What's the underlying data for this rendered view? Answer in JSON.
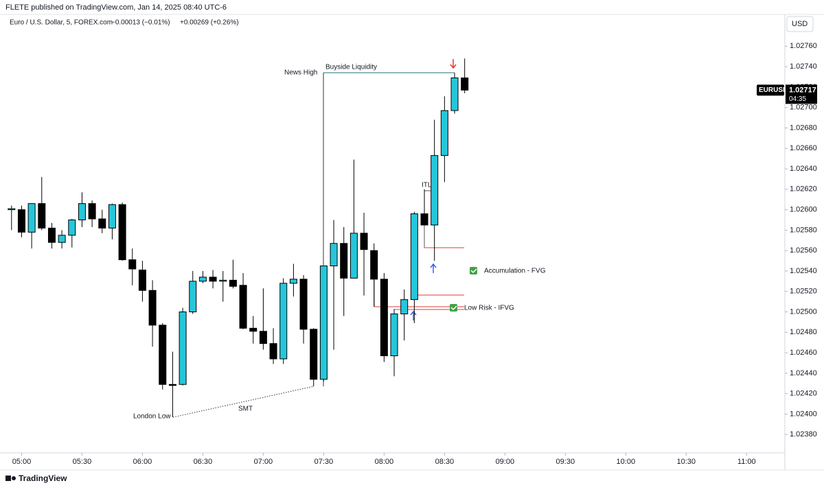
{
  "header": {
    "published": "FLETE published on TradingView.com, Jan 14, 2025 08:40 UTC-6",
    "symbol": "Euro / U.S. Dollar, 5, FOREX.com",
    "change": "−0.00013 (−0.01%)",
    "change2": "+0.00269 (+0.26%)",
    "currency": "USD",
    "brand": "TradingView"
  },
  "annotations": {
    "news_high": "News High",
    "buyside": "Buyside Liquidity",
    "london_low": "London Low",
    "smt": "SMT",
    "itl": "ITL",
    "fvg": "Accumulation - FVG",
    "ifvg": "Low Risk - IFVG"
  },
  "chart_data": {
    "type": "candlestick",
    "up_color": "#26c6da",
    "down_color": "#000000",
    "x": [
      295,
      300,
      305,
      310,
      315,
      320,
      325,
      330,
      335,
      340,
      345,
      350,
      355,
      360,
      365,
      370,
      375,
      380,
      385,
      390,
      395,
      400,
      405,
      410,
      415,
      420,
      425,
      430,
      435,
      440,
      445,
      450,
      455,
      460,
      465,
      470,
      475,
      480,
      485,
      490,
      495,
      500,
      505,
      510,
      515,
      520
    ],
    "open": [
      1.026,
      1.026,
      1.02578,
      1.02606,
      1.02582,
      1.02568,
      1.02575,
      1.0259,
      1.02606,
      1.02591,
      1.02582,
      1.02605,
      1.02551,
      1.02541,
      1.02521,
      1.02487,
      1.02429,
      1.02429,
      1.025,
      1.0253,
      1.02534,
      1.0253,
      1.02531,
      1.02526,
      1.02484,
      1.02481,
      1.02469,
      1.02454,
      1.02528,
      1.02532,
      1.02483,
      1.02434,
      1.02545,
      1.02567,
      1.02533,
      1.02577,
      1.0256,
      1.02532,
      1.02457,
      1.02498,
      1.02512,
      1.02596,
      1.02585,
      1.02653,
      1.02697,
      1.02729
    ],
    "high": [
      1.02604,
      1.02604,
      1.02606,
      1.02632,
      1.02587,
      1.0258,
      1.02591,
      1.02617,
      1.02609,
      1.026,
      1.02606,
      1.02607,
      1.02562,
      1.0255,
      1.02531,
      1.02489,
      1.02461,
      1.02504,
      1.0254,
      1.0254,
      1.02541,
      1.0254,
      1.02551,
      1.02538,
      1.02496,
      1.02523,
      1.02484,
      1.02533,
      1.02547,
      1.02536,
      1.02484,
      1.02545,
      1.0259,
      1.02583,
      1.02649,
      1.02597,
      1.02567,
      1.02538,
      1.02503,
      1.02522,
      1.02598,
      1.0262,
      1.02688,
      1.02711,
      1.02734,
      1.02748
    ],
    "low": [
      1.0258,
      1.02573,
      1.02562,
      1.0258,
      1.02562,
      1.02562,
      1.02563,
      1.02583,
      1.02583,
      1.02577,
      1.02571,
      1.0255,
      1.02526,
      1.0251,
      1.02466,
      1.02424,
      1.02397,
      1.02428,
      1.02498,
      1.02528,
      1.02523,
      1.0251,
      1.02523,
      1.02483,
      1.02469,
      1.02463,
      1.02449,
      1.02449,
      1.02515,
      1.02469,
      1.02427,
      1.02432,
      1.02463,
      1.02496,
      1.02533,
      1.02516,
      1.02505,
      1.02451,
      1.02437,
      1.02472,
      1.02489,
      1.02585,
      1.0255,
      1.02627,
      1.02694,
      1.02714
    ],
    "close": [
      1.02601,
      1.02578,
      1.02606,
      1.02582,
      1.02568,
      1.02575,
      1.0259,
      1.02606,
      1.02591,
      1.02582,
      1.02605,
      1.02551,
      1.02542,
      1.02521,
      1.02487,
      1.02429,
      1.02428,
      1.025,
      1.0253,
      1.02534,
      1.0253,
      1.02531,
      1.02525,
      1.02484,
      1.02481,
      1.02469,
      1.02454,
      1.02528,
      1.02532,
      1.02483,
      1.02434,
      1.02545,
      1.02567,
      1.02533,
      1.02577,
      1.02561,
      1.02532,
      1.02457,
      1.02498,
      1.02512,
      1.02596,
      1.02585,
      1.02653,
      1.02697,
      1.02729,
      1.02717
    ],
    "xlim": [
      292,
      679
    ],
    "xticks": [
      {
        "value": 300,
        "label": "05:00"
      },
      {
        "value": 330,
        "label": "05:30"
      },
      {
        "value": 360,
        "label": "06:00"
      },
      {
        "value": 390,
        "label": "06:30"
      },
      {
        "value": 420,
        "label": "07:00"
      },
      {
        "value": 450,
        "label": "07:30"
      },
      {
        "value": 480,
        "label": "08:00"
      },
      {
        "value": 510,
        "label": "08:30"
      },
      {
        "value": 540,
        "label": "09:00"
      },
      {
        "value": 570,
        "label": "09:30"
      },
      {
        "value": 600,
        "label": "10:00"
      },
      {
        "value": 630,
        "label": "10:30"
      },
      {
        "value": 660,
        "label": "11:00"
      }
    ],
    "ylim": [
      1.02362,
      1.02775
    ],
    "yticks": [
      {
        "value": 1.0276,
        "label": "1.02760"
      },
      {
        "value": 1.0274,
        "label": "1.02740"
      },
      {
        "value": 1.0272,
        "label": "1.02720"
      },
      {
        "value": 1.027,
        "label": "1.02700"
      },
      {
        "value": 1.0268,
        "label": "1.02680"
      },
      {
        "value": 1.0266,
        "label": "1.02660"
      },
      {
        "value": 1.0264,
        "label": "1.02640"
      },
      {
        "value": 1.0262,
        "label": "1.02620"
      },
      {
        "value": 1.026,
        "label": "1.02600"
      },
      {
        "value": 1.0258,
        "label": "1.02580"
      },
      {
        "value": 1.0256,
        "label": "1.02560"
      },
      {
        "value": 1.0254,
        "label": "1.02540"
      },
      {
        "value": 1.0252,
        "label": "1.02520"
      },
      {
        "value": 1.025,
        "label": "1.02500"
      },
      {
        "value": 1.0248,
        "label": "1.02480"
      },
      {
        "value": 1.0246,
        "label": "1.02460"
      },
      {
        "value": 1.0244,
        "label": "1.02440"
      },
      {
        "value": 1.0242,
        "label": "1.02420"
      },
      {
        "value": 1.024,
        "label": "1.02400"
      },
      {
        "value": 1.0238,
        "label": "1.02380"
      }
    ],
    "last_price": {
      "symbol": "EURUSD",
      "value": 1.02717,
      "countdown": "04:35"
    }
  }
}
